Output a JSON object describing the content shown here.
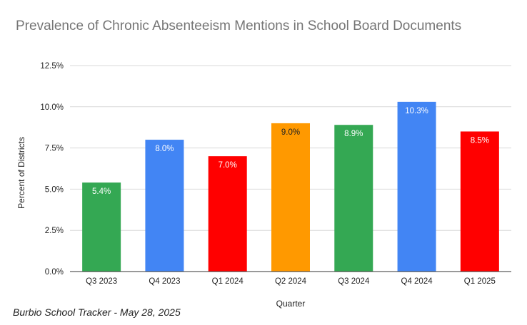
{
  "chart_data": {
    "type": "bar",
    "title": "Prevalence of Chronic Absenteeism Mentions in School Board Documents",
    "xlabel": "Quarter",
    "ylabel": "Percent of Districts",
    "categories": [
      "Q3 2023",
      "Q4 2023",
      "Q1 2024",
      "Q2 2024",
      "Q3 2024",
      "Q4 2024",
      "Q1 2025"
    ],
    "values": [
      5.4,
      8.0,
      7.0,
      9.0,
      8.9,
      10.3,
      8.5
    ],
    "data_labels": [
      "5.4%",
      "8.0%",
      "7.0%",
      "9.0%",
      "8.9%",
      "10.3%",
      "8.5%"
    ],
    "bar_colors": [
      "#34a853",
      "#4285f4",
      "#ff0000",
      "#ff9900",
      "#34a853",
      "#4285f4",
      "#ff0000"
    ],
    "ylim": [
      0,
      12.5
    ],
    "yticks": [
      0,
      2.5,
      5.0,
      7.5,
      10.0,
      12.5
    ],
    "ytick_labels": [
      "0.0%",
      "2.5%",
      "5.0%",
      "7.5%",
      "10.0%",
      "12.5%"
    ],
    "grid": true,
    "legend": "none"
  },
  "source_note": "Burbio School Tracker - May 28, 2025"
}
